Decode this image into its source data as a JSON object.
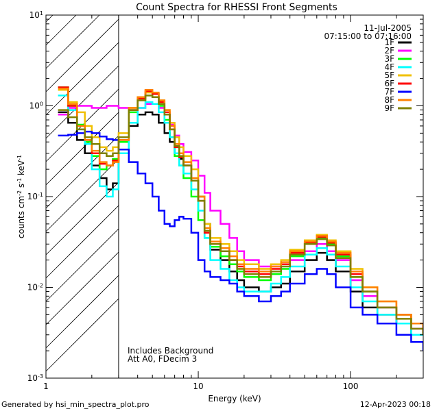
{
  "chart_data": {
    "type": "line",
    "title": "Count Spectra for RHESSI Front Segments",
    "xlabel": "Energy (keV)",
    "ylabel_parts": [
      "counts cm",
      "-2",
      " s",
      "-1",
      " keV",
      "-1"
    ],
    "xscale": "log",
    "yscale": "log",
    "xlim": [
      1,
      300
    ],
    "ylim": [
      0.001,
      10
    ],
    "x_ticks": [
      {
        "value": 1,
        "label": "1"
      },
      {
        "value": 10,
        "label": "10"
      },
      {
        "value": 100,
        "label": "100"
      }
    ],
    "y_ticks": [
      {
        "value": 10,
        "base": "10",
        "exp": "1"
      },
      {
        "value": 1,
        "base": "10",
        "exp": "0"
      },
      {
        "value": 0.1,
        "base": "10",
        "exp": "-1"
      },
      {
        "value": 0.01,
        "base": "10",
        "exp": "-2"
      },
      {
        "value": 0.001,
        "base": "10",
        "exp": "-3"
      }
    ],
    "hatched_region": {
      "x_min": 1,
      "x_max": 3
    },
    "date": "11-Jul-2005",
    "time_range": "07:15:00 to 07:16:00",
    "annotations": [
      "Includes Background",
      "Att A0, FDecim 3"
    ],
    "x_energies": [
      1.2,
      1.4,
      1.6,
      1.8,
      2.0,
      2.25,
      2.5,
      2.75,
      3.0,
      3.5,
      4.0,
      4.5,
      5.0,
      5.5,
      6.0,
      6.5,
      7.0,
      7.5,
      8.0,
      9.0,
      10.0,
      11.0,
      12.0,
      14.0,
      16.0,
      18.0,
      20.0,
      25.0,
      30.0,
      35.0,
      40.0,
      50.0,
      60.0,
      70.0,
      80.0,
      100.0,
      120.0,
      150.0,
      200.0,
      250.0,
      300.0
    ],
    "series": [
      {
        "name": "1F",
        "color": "#000000",
        "values": [
          0.85,
          0.65,
          0.42,
          0.3,
          0.22,
          0.16,
          0.12,
          0.14,
          0.3,
          0.6,
          0.8,
          0.85,
          0.8,
          0.65,
          0.5,
          0.4,
          0.3,
          0.26,
          0.22,
          0.15,
          0.1,
          0.05,
          0.026,
          0.02,
          0.015,
          0.012,
          0.01,
          0.009,
          0.01,
          0.011,
          0.015,
          0.02,
          0.024,
          0.02,
          0.015,
          0.009,
          0.006,
          0.005,
          0.004,
          0.003,
          0.003
        ]
      },
      {
        "name": "2F",
        "color": "#ff00ff",
        "values": [
          0.8,
          0.95,
          1.0,
          1.0,
          0.95,
          0.95,
          1.0,
          1.0,
          0.95,
          0.9,
          0.95,
          1.05,
          1.05,
          0.95,
          0.8,
          0.62,
          0.47,
          0.38,
          0.31,
          0.25,
          0.17,
          0.11,
          0.07,
          0.05,
          0.035,
          0.025,
          0.02,
          0.017,
          0.017,
          0.018,
          0.02,
          0.025,
          0.03,
          0.025,
          0.02,
          0.012,
          0.008,
          0.006,
          0.004,
          0.0035,
          0.003
        ]
      },
      {
        "name": "3F",
        "color": "#00ff00",
        "values": [
          1.6,
          1.0,
          0.62,
          0.4,
          0.28,
          0.2,
          0.22,
          0.26,
          0.4,
          0.85,
          1.15,
          1.3,
          1.25,
          1.0,
          0.7,
          0.45,
          0.28,
          0.22,
          0.16,
          0.1,
          0.055,
          0.035,
          0.028,
          0.022,
          0.018,
          0.015,
          0.013,
          0.012,
          0.014,
          0.016,
          0.022,
          0.03,
          0.035,
          0.03,
          0.022,
          0.013,
          0.009,
          0.006,
          0.005,
          0.004,
          0.003
        ]
      },
      {
        "name": "4F",
        "color": "#00ffff",
        "values": [
          1.3,
          0.9,
          0.55,
          0.38,
          0.2,
          0.13,
          0.1,
          0.12,
          0.3,
          0.65,
          0.95,
          1.1,
          1.05,
          0.85,
          0.65,
          0.45,
          0.3,
          0.22,
          0.18,
          0.12,
          0.07,
          0.035,
          0.02,
          0.016,
          0.012,
          0.01,
          0.009,
          0.009,
          0.011,
          0.013,
          0.017,
          0.023,
          0.027,
          0.023,
          0.017,
          0.01,
          0.007,
          0.005,
          0.004,
          0.003,
          0.003
        ]
      },
      {
        "name": "5F",
        "color": "#f0c000",
        "values": [
          1.5,
          1.1,
          0.85,
          0.6,
          0.45,
          0.35,
          0.32,
          0.35,
          0.5,
          0.95,
          1.25,
          1.4,
          1.35,
          1.15,
          0.9,
          0.65,
          0.45,
          0.35,
          0.28,
          0.2,
          0.1,
          0.05,
          0.035,
          0.03,
          0.025,
          0.02,
          0.018,
          0.016,
          0.018,
          0.02,
          0.026,
          0.033,
          0.038,
          0.033,
          0.025,
          0.016,
          0.01,
          0.007,
          0.005,
          0.004,
          0.0035
        ]
      },
      {
        "name": "6F",
        "color": "#ff0000",
        "values": [
          1.6,
          1.0,
          0.6,
          0.42,
          0.3,
          0.23,
          0.22,
          0.25,
          0.42,
          0.9,
          1.2,
          1.45,
          1.35,
          1.1,
          0.85,
          0.55,
          0.35,
          0.27,
          0.22,
          0.15,
          0.09,
          0.04,
          0.03,
          0.025,
          0.02,
          0.017,
          0.015,
          0.014,
          0.016,
          0.018,
          0.024,
          0.031,
          0.036,
          0.031,
          0.023,
          0.014,
          0.009,
          0.006,
          0.005,
          0.004,
          0.003
        ]
      },
      {
        "name": "7F",
        "color": "#0000ff",
        "values": [
          0.47,
          0.48,
          0.5,
          0.52,
          0.5,
          0.46,
          0.43,
          0.42,
          0.33,
          0.24,
          0.18,
          0.14,
          0.1,
          0.07,
          0.05,
          0.047,
          0.055,
          0.06,
          0.057,
          0.04,
          0.02,
          0.015,
          0.013,
          0.012,
          0.011,
          0.009,
          0.008,
          0.007,
          0.008,
          0.009,
          0.011,
          0.014,
          0.016,
          0.014,
          0.01,
          0.006,
          0.005,
          0.004,
          0.003,
          0.0025,
          0.002
        ]
      },
      {
        "name": "8F",
        "color": "#ff8000",
        "values": [
          1.55,
          1.05,
          0.6,
          0.42,
          0.32,
          0.24,
          0.22,
          0.24,
          0.42,
          0.95,
          1.25,
          1.5,
          1.4,
          1.15,
          0.9,
          0.6,
          0.38,
          0.3,
          0.24,
          0.16,
          0.1,
          0.045,
          0.032,
          0.027,
          0.022,
          0.018,
          0.016,
          0.015,
          0.017,
          0.019,
          0.025,
          0.032,
          0.037,
          0.032,
          0.024,
          0.015,
          0.01,
          0.007,
          0.005,
          0.004,
          0.003
        ]
      },
      {
        "name": "9F",
        "color": "#808000",
        "values": [
          0.9,
          0.75,
          0.55,
          0.45,
          0.38,
          0.3,
          0.28,
          0.3,
          0.45,
          0.9,
          1.15,
          1.3,
          1.25,
          1.05,
          0.8,
          0.55,
          0.36,
          0.28,
          0.22,
          0.15,
          0.09,
          0.042,
          0.03,
          0.025,
          0.02,
          0.016,
          0.014,
          0.013,
          0.015,
          0.017,
          0.023,
          0.03,
          0.034,
          0.029,
          0.021,
          0.013,
          0.009,
          0.006,
          0.0045,
          0.0035,
          0.003
        ]
      }
    ]
  },
  "footer": {
    "generated_by": "Generated by hsi_min_spectra_plot.pro",
    "timestamp": "12-Apr-2023 00:18"
  }
}
